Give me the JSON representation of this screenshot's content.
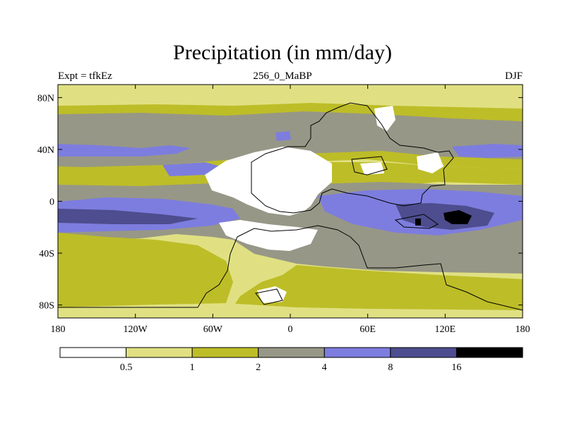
{
  "chart_data": {
    "type": "heatmap",
    "title": "Precipitation (in mm/day)",
    "left_string": "Expt = tfkEz",
    "center_string": "256_0_MaBP",
    "right_string": "DJF",
    "x_ticks": [
      "180",
      "120W",
      "60W",
      "0",
      "60E",
      "120E",
      "180"
    ],
    "x_tick_values": [
      -180,
      -120,
      -60,
      0,
      60,
      120,
      180
    ],
    "y_ticks": [
      "80N",
      "40N",
      "0",
      "40S",
      "80S"
    ],
    "y_tick_values": [
      80,
      40,
      0,
      -40,
      -80
    ],
    "xlim": [
      -180,
      180
    ],
    "ylim": [
      -90,
      90
    ],
    "colorbar_levels": [
      "0.5",
      "1",
      "2",
      "4",
      "8",
      "16"
    ],
    "colorbar_colors": [
      "#ffffff",
      "#e0e083",
      "#bdbd28",
      "#979787",
      "#7d7ddf",
      "#4d4d8f",
      "#000000"
    ]
  }
}
